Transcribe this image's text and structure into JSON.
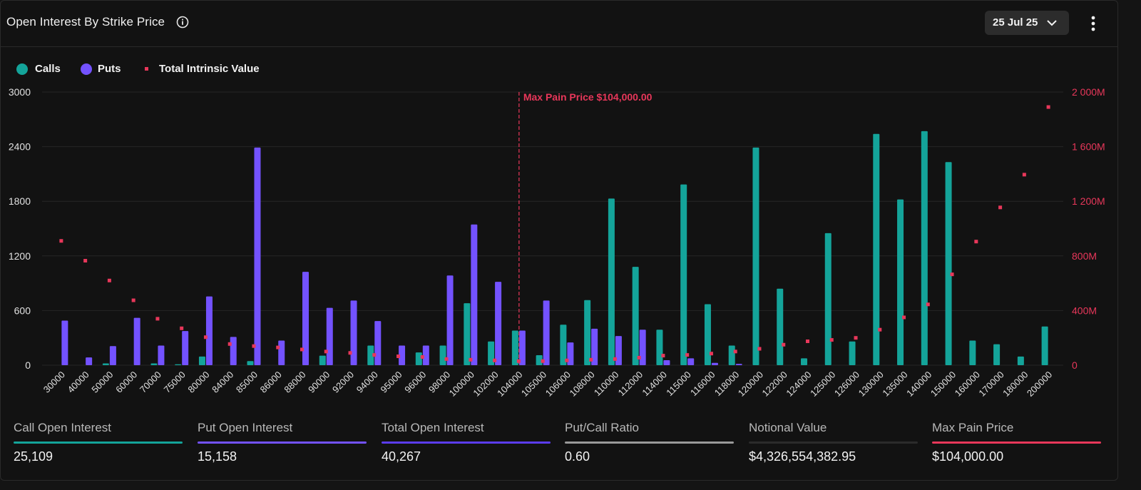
{
  "header": {
    "title": "Open Interest By Strike Price",
    "date_label": "25 Jul 25"
  },
  "legend": {
    "calls": "Calls",
    "puts": "Puts",
    "intrinsic": "Total Intrinsic Value"
  },
  "colors": {
    "calls": "#14a49a",
    "puts": "#7352ff",
    "intrinsic": "#e8375a",
    "max_pain": "#e8375a",
    "notional_bar": "#2b2b2b",
    "ratio_bar": "#9a9a9a"
  },
  "chart_data": {
    "type": "bar",
    "categories": [
      "30000",
      "40000",
      "50000",
      "60000",
      "70000",
      "75000",
      "80000",
      "84000",
      "85000",
      "86000",
      "88000",
      "90000",
      "92000",
      "94000",
      "95000",
      "96000",
      "98000",
      "100000",
      "102000",
      "104000",
      "105000",
      "106000",
      "108000",
      "110000",
      "112000",
      "114000",
      "115000",
      "116000",
      "118000",
      "120000",
      "122000",
      "124000",
      "125000",
      "126000",
      "130000",
      "135000",
      "140000",
      "150000",
      "160000",
      "170000",
      "180000",
      "200000"
    ],
    "series": [
      {
        "name": "Calls",
        "axis": "left",
        "values": [
          0,
          0,
          20,
          0,
          20,
          10,
          95,
          0,
          45,
          0,
          0,
          105,
          0,
          215,
          0,
          140,
          215,
          680,
          260,
          380,
          110,
          445,
          715,
          1830,
          1080,
          390,
          1985,
          670,
          215,
          2390,
          840,
          75,
          1450,
          260,
          2540,
          1820,
          2570,
          2230,
          270,
          230,
          95,
          425
        ]
      },
      {
        "name": "Puts",
        "axis": "left",
        "values": [
          490,
          85,
          210,
          520,
          215,
          375,
          755,
          310,
          2390,
          270,
          1025,
          630,
          710,
          485,
          215,
          215,
          985,
          1545,
          915,
          380,
          710,
          250,
          400,
          320,
          390,
          55,
          75,
          25,
          15,
          0,
          0,
          0,
          0,
          0,
          0,
          0,
          0,
          0,
          0,
          0,
          0,
          0
        ]
      },
      {
        "name": "Total Intrinsic Value",
        "axis": "right",
        "style": "marker",
        "unit": "M",
        "values": [
          910,
          765,
          620,
          475,
          340,
          270,
          205,
          155,
          140,
          130,
          115,
          100,
          90,
          75,
          65,
          60,
          45,
          40,
          35,
          30,
          30,
          35,
          40,
          45,
          55,
          70,
          75,
          85,
          100,
          120,
          150,
          175,
          185,
          200,
          260,
          350,
          445,
          665,
          905,
          1155,
          1395,
          1890
        ]
      }
    ],
    "y_left": {
      "min": 0,
      "max": 3000,
      "ticks": [
        "0",
        "600",
        "1200",
        "1800",
        "2400",
        "3000"
      ]
    },
    "y_right": {
      "min": 0,
      "max": 2000,
      "ticks": [
        "0",
        "400M",
        "800M",
        "1 200M",
        "1 600M",
        "2 000M"
      ]
    },
    "max_pain": {
      "category": "104000",
      "label": "Max Pain Price $104,000.00"
    },
    "grid": true,
    "legend_position": "top-left"
  },
  "stats": [
    {
      "label": "Call Open Interest",
      "value": "25,109",
      "color": "#14a49a"
    },
    {
      "label": "Put Open Interest",
      "value": "15,158",
      "color": "#7352ff"
    },
    {
      "label": "Total Open Interest",
      "value": "40,267",
      "color": "#5b3cf0"
    },
    {
      "label": "Put/Call Ratio",
      "value": "0.60",
      "color": "#9a9a9a"
    },
    {
      "label": "Notional Value",
      "value": "$4,326,554,382.95",
      "color": "#2b2b2b"
    },
    {
      "label": "Max Pain Price",
      "value": "$104,000.00",
      "color": "#e8375a"
    }
  ]
}
